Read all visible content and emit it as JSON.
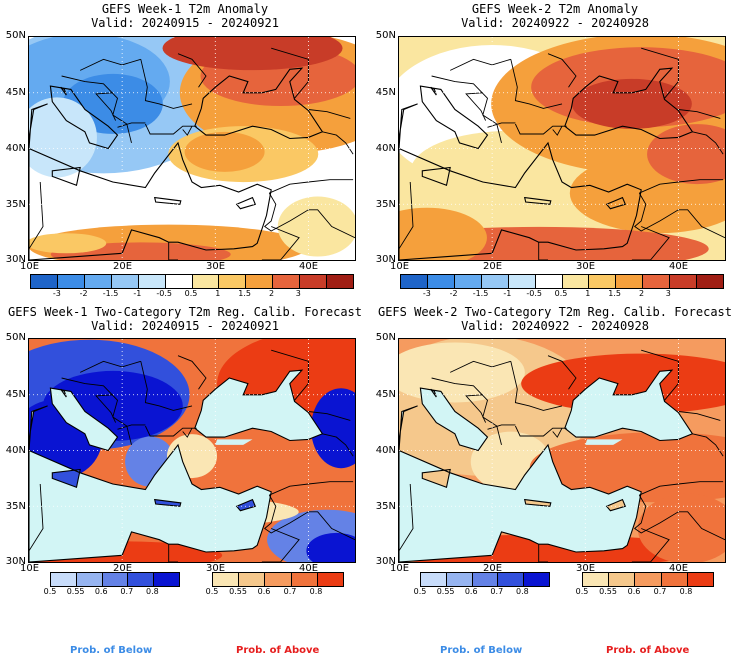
{
  "panels": [
    {
      "id": "w1-anom",
      "title": "GEFS Week-1 T2m Anomaly",
      "valid": "Valid: 20240915 - 20240921",
      "kind": "anomaly",
      "field": "week1_anomaly"
    },
    {
      "id": "w2-anom",
      "title": "GEFS Week-2 T2m Anomaly",
      "valid": "Valid: 20240922 - 20240928",
      "kind": "anomaly",
      "field": "week2_anomaly"
    },
    {
      "id": "w1-prob",
      "title": "GEFS Week-1 Two-Category T2m Reg. Calib. Forecast",
      "valid": "Valid: 20240915 - 20240921",
      "kind": "probability",
      "field": "week1_prob"
    },
    {
      "id": "w2-prob",
      "title": "GEFS Week-2 Two-Category T2m Reg. Calib. Forecast",
      "valid": "Valid: 20240922 - 20240928",
      "kind": "probability",
      "field": "week2_prob"
    }
  ],
  "axes": {
    "lat_labels": [
      "50N",
      "45N",
      "40N",
      "35N",
      "30N"
    ],
    "lon_labels": [
      "10E",
      "20E",
      "30E",
      "40E"
    ],
    "lat_values": [
      50,
      45,
      40,
      35,
      30
    ],
    "lon_values": [
      10,
      20,
      30,
      40
    ],
    "lon_range": [
      10,
      45
    ],
    "lat_range": [
      30,
      50
    ]
  },
  "anomaly_legend": {
    "labels": [
      "-3",
      "-2",
      "-1.5",
      "-1",
      "-0.5",
      "0.5",
      "1",
      "1.5",
      "2",
      "3"
    ],
    "colors": [
      "#1e64c8",
      "#3c8ce6",
      "#64aaf0",
      "#96c8f5",
      "#c8e6fa",
      "#ffffff",
      "#fae6a0",
      "#fac864",
      "#f5a03c",
      "#e6643c",
      "#c83c28",
      "#a01e14"
    ]
  },
  "prob_below_legend": {
    "labels": [
      "0.5",
      "0.55",
      "0.6",
      "0.7",
      "0.8"
    ],
    "colors": [
      "#c8dcfa",
      "#96b4f0",
      "#6482e6",
      "#3250dc",
      "#0a14d2"
    ],
    "caption": "Prob. of Below",
    "caption_color": "#3c8ce6"
  },
  "prob_above_legend": {
    "labels": [
      "0.5",
      "0.55",
      "0.6",
      "0.7",
      "0.8"
    ],
    "colors": [
      "#fae6b4",
      "#f5c88c",
      "#f59b5f",
      "#f0733c",
      "#eb3c14"
    ],
    "caption": "Prob. of Above",
    "caption_color": "#e61e1e"
  },
  "colors": {
    "sea": "#d2f5f5",
    "coast": "#000000"
  }
}
